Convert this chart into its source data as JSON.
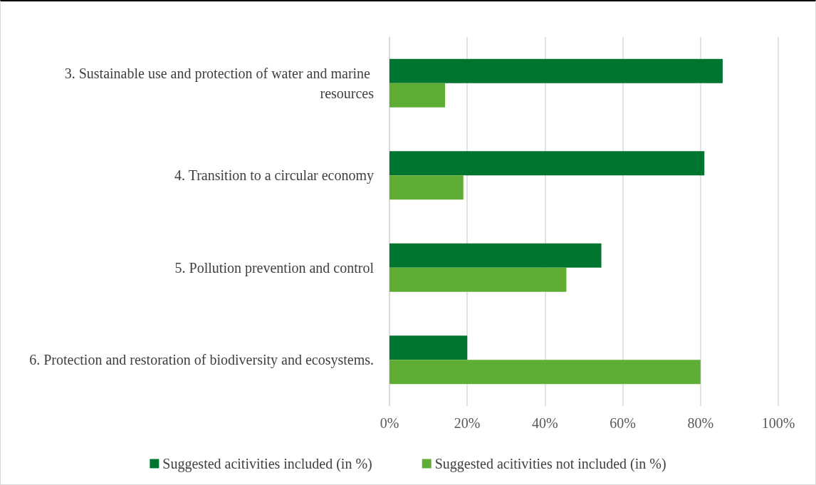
{
  "chart_data": {
    "type": "bar",
    "orientation": "horizontal",
    "categories": [
      "3. Sustainable use and protection of water and marine resources",
      "4. Transition to a circular economy",
      "5. Pollution prevention and control",
      "6. Protection and restoration of biodiversity and ecosystems."
    ],
    "series": [
      {
        "name": "Suggested acitivities included (in %)",
        "color": "#00752f",
        "values": [
          85.7,
          81,
          54.5,
          20
        ]
      },
      {
        "name": "Suggested acitivities not included (in %)",
        "color": "#5fad35",
        "values": [
          14.3,
          19,
          45.5,
          80
        ]
      }
    ],
    "xlim": [
      0,
      100
    ],
    "xticks": [
      {
        "value": 0,
        "label": "0%"
      },
      {
        "value": 20,
        "label": "20%"
      },
      {
        "value": 40,
        "label": "40%"
      },
      {
        "value": 60,
        "label": "60%"
      },
      {
        "value": 80,
        "label": "80%"
      },
      {
        "value": 100,
        "label": "100%"
      }
    ],
    "grid": "x",
    "legend": "bottom"
  }
}
